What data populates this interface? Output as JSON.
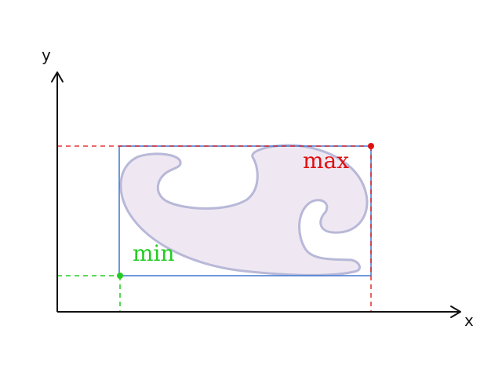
{
  "axes": {
    "x_label": "x",
    "y_label": "y"
  },
  "labels": {
    "min": "min",
    "max": "max"
  },
  "colors": {
    "axis": "#111111",
    "bounding_box": "#4a7fd4",
    "max": "#e01010",
    "min": "#22cc22",
    "shape_fill": "#efe8f2",
    "shape_stroke": "#b8b8d8"
  }
}
